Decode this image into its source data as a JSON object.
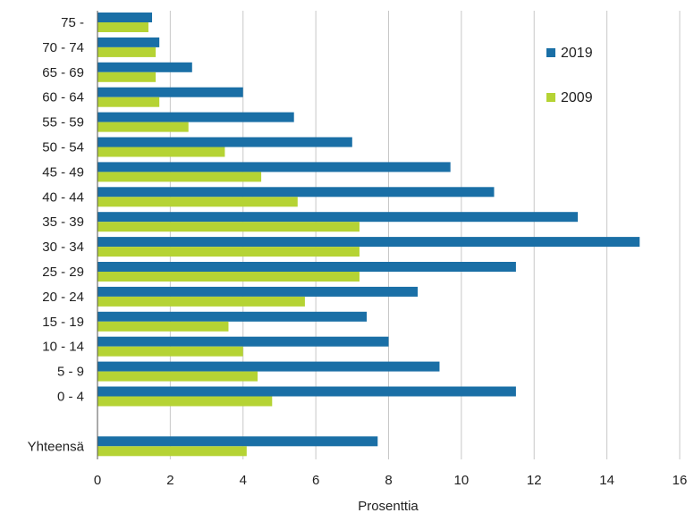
{
  "chart_data": {
    "type": "bar",
    "orientation": "horizontal",
    "title": "",
    "xlabel": "Prosenttia",
    "ylabel": "",
    "xlim": [
      0,
      16
    ],
    "xticks": [
      "0",
      "2",
      "4",
      "6",
      "8",
      "10",
      "12",
      "14",
      "16"
    ],
    "grid": "vertical",
    "legend_position": "top-right",
    "categories": [
      "75 -",
      "70 - 74",
      "65 - 69",
      "60 - 64",
      "55 - 59",
      "50 - 54",
      "45 - 49",
      "40 - 44",
      "35 - 39",
      "30 - 34",
      "25 - 29",
      "20 - 24",
      "15 - 19",
      "10 - 14",
      "5 - 9",
      "0 - 4",
      "",
      "Yhteensä"
    ],
    "series": [
      {
        "name": "2019",
        "color": "#1a6fa6",
        "values": [
          1.5,
          1.7,
          2.6,
          4.0,
          5.4,
          7.0,
          9.7,
          10.9,
          13.2,
          14.9,
          11.5,
          8.8,
          7.4,
          8.0,
          9.4,
          11.5,
          null,
          7.7
        ]
      },
      {
        "name": "2009",
        "color": "#b5d334",
        "values": [
          1.4,
          1.6,
          1.6,
          1.7,
          2.5,
          3.5,
          4.5,
          5.5,
          7.2,
          7.2,
          7.2,
          5.7,
          3.6,
          4.0,
          4.4,
          4.8,
          null,
          4.1
        ]
      }
    ]
  }
}
